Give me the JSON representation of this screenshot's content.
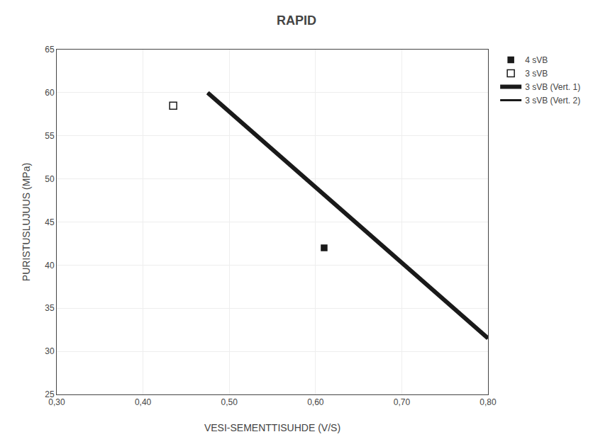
{
  "chart_data": {
    "type": "line",
    "title": "RAPID",
    "xlabel": "VESI-SEMENTTISUHDE (V/S)",
    "ylabel": "PURISTUSLUJUUS (MPa)",
    "xlim": [
      0.3,
      0.8
    ],
    "ylim": [
      25,
      65
    ],
    "xticks": [
      {
        "value": 0.3,
        "label": "0,30"
      },
      {
        "value": 0.4,
        "label": "0,40"
      },
      {
        "value": 0.5,
        "label": "0,50"
      },
      {
        "value": 0.6,
        "label": "0,60"
      },
      {
        "value": 0.7,
        "label": "0,70"
      },
      {
        "value": 0.8,
        "label": "0,80"
      }
    ],
    "yticks": [
      25,
      30,
      35,
      40,
      45,
      50,
      55,
      60,
      65
    ],
    "grid": true,
    "legend": "right",
    "series": [
      {
        "name": "4 sVB",
        "type": "scatter",
        "x": [
          0.61
        ],
        "values": [
          42
        ],
        "color": "#1a1a1a",
        "marker": "square"
      },
      {
        "name": "3 sVB",
        "type": "scatter",
        "x": [
          0.435
        ],
        "values": [
          58.5
        ],
        "color": "#1a1a1a",
        "marker": "square-open"
      },
      {
        "name": "3 sVB (Vert. 1)",
        "type": "line",
        "x": [
          0.475,
          0.8
        ],
        "values": [
          60.0,
          31.5
        ],
        "color": "#1a1a1a",
        "line_style": "solid"
      },
      {
        "name": "3 sVB (Vert. 2)",
        "type": "line",
        "x": [
          0.475,
          0.8
        ],
        "values": [
          60.0,
          31.5
        ],
        "color": "#1a1a1a",
        "line_style": "solid"
      }
    ]
  }
}
